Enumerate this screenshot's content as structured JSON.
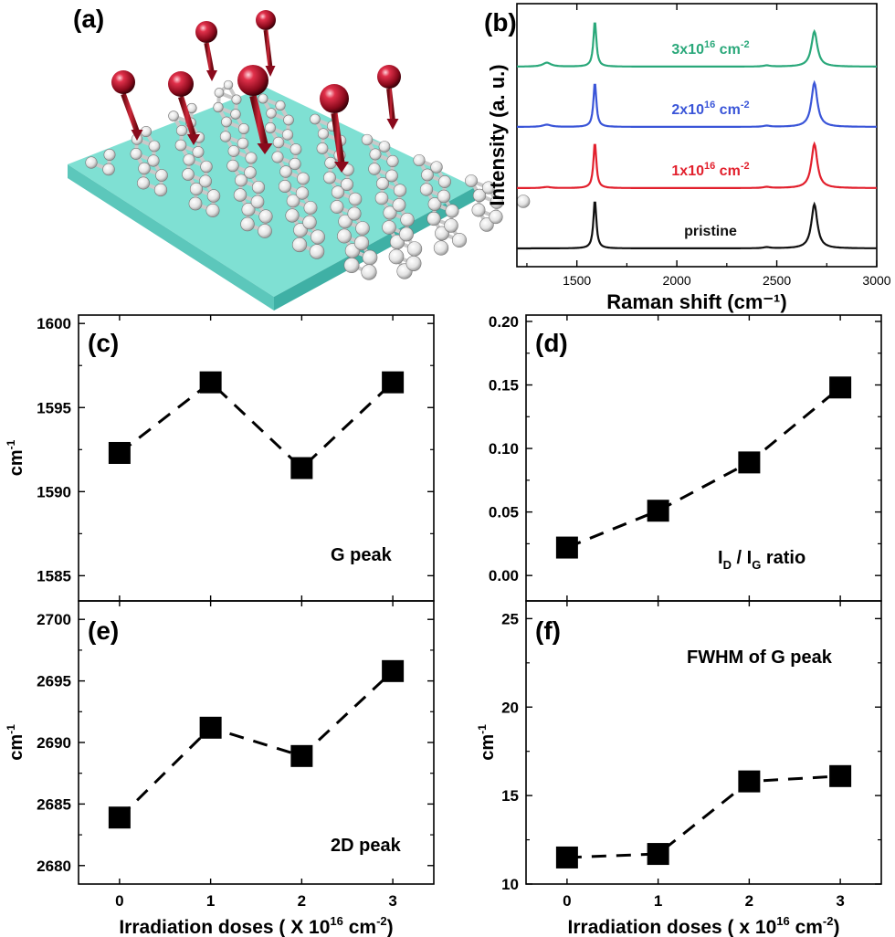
{
  "figure": {
    "panel_a_label": "(a)",
    "panel_b_label": "(b)",
    "panel_c_label": "(c)",
    "panel_d_label": "(d)",
    "panel_e_label": "(e)",
    "panel_f_label": "(f)"
  },
  "colors": {
    "substrate_top": "#7fe0d3",
    "substrate_side": "#47b8ad",
    "ion_sphere": "#c8102e",
    "ion_arrow": "#b0121f",
    "atom": "#f2f2f2",
    "spectrum_3x": "#2aa87a",
    "spectrum_2x": "#3a55d8",
    "spectrum_1x": "#e2202d",
    "spectrum_pristine": "#111111"
  },
  "chart_data": [
    {
      "id": "b",
      "type": "line",
      "xlabel": "Raman shift (cm⁻¹)",
      "ylabel": "Intensity (a. u.)",
      "xlim": [
        1200,
        3000
      ],
      "xticks": [
        1500,
        2000,
        2500,
        3000
      ],
      "peaks": {
        "D": 1350,
        "G": 1590,
        "D_prime": 2450,
        "2D": 2688
      },
      "series": [
        {
          "name": "pristine",
          "label_base": "pristine",
          "label_exp": "",
          "label_unit": "",
          "D_intensity": 0.0,
          "G_intensity": 0.85,
          "twoD_intensity": 0.78
        },
        {
          "name": "1x10^16 cm^-2",
          "label_base": "1x10",
          "label_exp": "16",
          "label_unit": " cm",
          "label_unit_exp": "-2",
          "D_intensity": 0.02,
          "G_intensity": 0.8,
          "twoD_intensity": 0.78
        },
        {
          "name": "2x10^16 cm^-2",
          "label_base": "2x10",
          "label_exp": "16",
          "label_unit": " cm",
          "label_unit_exp": "-2",
          "D_intensity": 0.04,
          "G_intensity": 0.78,
          "twoD_intensity": 0.78
        },
        {
          "name": "3x10^16 cm^-2",
          "label_base": "3x10",
          "label_exp": "16",
          "label_unit": " cm",
          "label_unit_exp": "-2",
          "D_intensity": 0.07,
          "G_intensity": 0.8,
          "twoD_intensity": 0.62
        }
      ]
    },
    {
      "id": "c",
      "type": "scatter",
      "annotation": "G peak",
      "ylabel": "cm",
      "ylabel_exp": "-1",
      "x": [
        0,
        1,
        2,
        3
      ],
      "values": [
        1592.3,
        1596.5,
        1591.4,
        1596.5
      ],
      "ylim": [
        1583.5,
        1600.5
      ],
      "yticks": [
        1585,
        1590,
        1595,
        1600
      ]
    },
    {
      "id": "d",
      "type": "scatter",
      "annotation": "I_D / I_G ratio",
      "x": [
        0,
        1,
        2,
        3
      ],
      "values": [
        0.022,
        0.051,
        0.089,
        0.148
      ],
      "ylim": [
        -0.02,
        0.205
      ],
      "yticks": [
        0.0,
        0.05,
        0.1,
        0.15,
        0.2
      ],
      "ytick_labels": [
        "0.00",
        "0.05",
        "0.10",
        "0.15",
        "0.20"
      ]
    },
    {
      "id": "e",
      "type": "scatter",
      "annotation": "2D peak",
      "ylabel": "cm",
      "ylabel_exp": "-1",
      "xlabel": "Irradiation doses ( X 10",
      "xlabel_exp": "16",
      "xlabel_tail": " cm",
      "xlabel_tail_exp": "-2",
      "xlabel_end": ")",
      "x": [
        0,
        1,
        2,
        3
      ],
      "xtick_labels": [
        "0",
        "1",
        "2",
        "3"
      ],
      "values": [
        2683.9,
        2691.2,
        2688.9,
        2695.8
      ],
      "ylim": [
        2678.5,
        2701.5
      ],
      "yticks": [
        2680,
        2685,
        2690,
        2695,
        2700
      ]
    },
    {
      "id": "f",
      "type": "scatter",
      "annotation": "FWHM of G peak",
      "ylabel": "cm",
      "ylabel_exp": "-1",
      "xlabel": "Irradiation doses ( x 10",
      "xlabel_exp": "16",
      "xlabel_tail": " cm",
      "xlabel_tail_exp": "-2",
      "xlabel_end": ")",
      "x": [
        0,
        1,
        2,
        3
      ],
      "xtick_labels": [
        "0",
        "1",
        "2",
        "3"
      ],
      "values": [
        11.5,
        11.7,
        15.8,
        16.1
      ],
      "ylim": [
        10,
        26
      ],
      "yticks": [
        10,
        15,
        20,
        25
      ]
    }
  ]
}
